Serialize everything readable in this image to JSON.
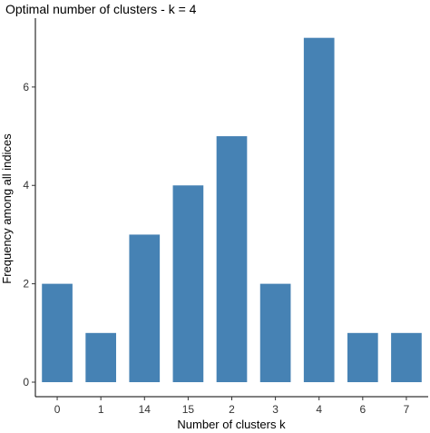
{
  "chart_data": {
    "type": "bar",
    "title": "Optimal number of clusters - k = 4",
    "xlabel": "Number of clusters k",
    "ylabel": "Frequency among all indices",
    "categories": [
      "0",
      "1",
      "14",
      "15",
      "2",
      "3",
      "4",
      "6",
      "7"
    ],
    "values": [
      2,
      1,
      3,
      4,
      5,
      2,
      7,
      1,
      1
    ],
    "yticks": [
      0,
      2,
      4,
      6
    ],
    "ylim": [
      0,
      7.4
    ],
    "grid": false,
    "legend": "none",
    "bar_color": "#4682B4"
  }
}
